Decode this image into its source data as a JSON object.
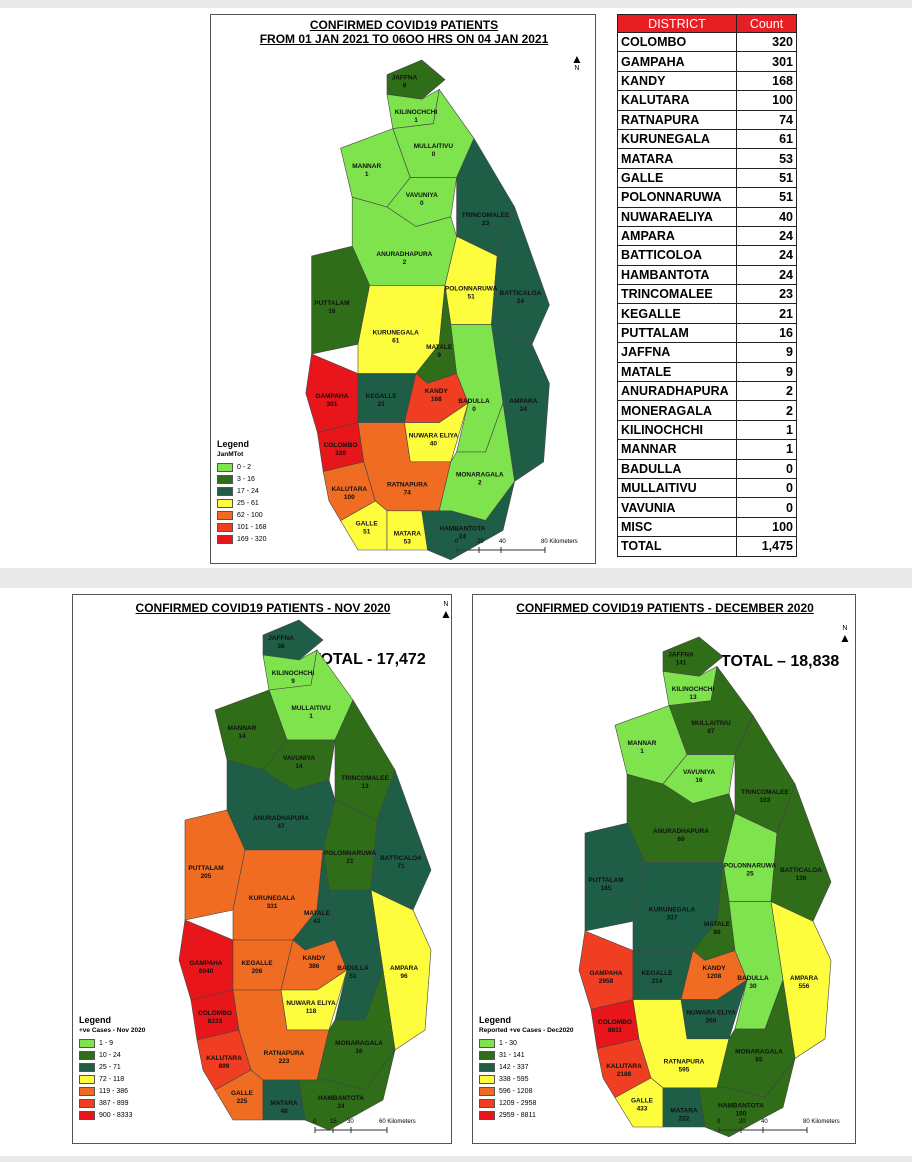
{
  "colors": {
    "light_green": "#7ee34d",
    "dark_green": "#2f6d19",
    "teal": "#1f5e46",
    "yellow": "#fdfd3d",
    "orange": "#f06c23",
    "red_orange": "#ef3e22",
    "red": "#e8161b",
    "table_header": "#e81e25"
  },
  "map1": {
    "title_line1": "CONFIRMED COVID19 PATIENTS",
    "title_line2": "FROM 01 JAN  2021 TO 06OO HRS ON 04 JAN 2021",
    "legend_title": "Legend",
    "legend_field": "JanMTot",
    "legend": [
      {
        "label": "0 - 2",
        "color": "#7ee34d"
      },
      {
        "label": "3 - 16",
        "color": "#2f6d19"
      },
      {
        "label": "17 - 24",
        "color": "#1f5e46"
      },
      {
        "label": "25 - 61",
        "color": "#fdfd3d"
      },
      {
        "label": "62 - 100",
        "color": "#f06c23"
      },
      {
        "label": "101 - 168",
        "color": "#ef3e22"
      },
      {
        "label": "169 - 320",
        "color": "#e8161b"
      }
    ],
    "scale_ticks": [
      "0",
      "20",
      "40",
      "80 Kilometers"
    ],
    "north": "N",
    "districts": [
      {
        "name": "JAFFNA",
        "value": "9",
        "color": "#2f6d19"
      },
      {
        "name": "KILINOCHCHI",
        "value": "1",
        "color": "#7ee34d"
      },
      {
        "name": "MULLAITIVU",
        "value": "0",
        "color": "#7ee34d"
      },
      {
        "name": "MANNAR",
        "value": "1",
        "color": "#7ee34d"
      },
      {
        "name": "VAVUNIYA",
        "value": "0",
        "color": "#7ee34d"
      },
      {
        "name": "TRINCOMALEE",
        "value": "23",
        "color": "#1f5e46"
      },
      {
        "name": "ANURADHAPURA",
        "value": "2",
        "color": "#7ee34d"
      },
      {
        "name": "PUTTALAM",
        "value": "16",
        "color": "#2f6d19"
      },
      {
        "name": "POLONNARUWA",
        "value": "51",
        "color": "#fdfd3d"
      },
      {
        "name": "BATTICALOA",
        "value": "24",
        "color": "#1f5e46"
      },
      {
        "name": "KURUNEGALA",
        "value": "61",
        "color": "#fdfd3d"
      },
      {
        "name": "MATALE",
        "value": "9",
        "color": "#2f6d19"
      },
      {
        "name": "AMPARA",
        "value": "24",
        "color": "#1f5e46"
      },
      {
        "name": "GAMPAHA",
        "value": "301",
        "color": "#e8161b"
      },
      {
        "name": "KEGALLE",
        "value": "21",
        "color": "#1f5e46"
      },
      {
        "name": "KANDY",
        "value": "168",
        "color": "#ef3e22"
      },
      {
        "name": "NUWARA ELIYA",
        "value": "40",
        "color": "#fdfd3d"
      },
      {
        "name": "BADULLA",
        "value": "0",
        "color": "#7ee34d"
      },
      {
        "name": "COLOMBO",
        "value": "320",
        "color": "#e8161b"
      },
      {
        "name": "KALUTARA",
        "value": "100",
        "color": "#f06c23"
      },
      {
        "name": "RATNAPURA",
        "value": "74",
        "color": "#f06c23"
      },
      {
        "name": "MONARAGALA",
        "value": "2",
        "color": "#7ee34d"
      },
      {
        "name": "GALLE",
        "value": "51",
        "color": "#fdfd3d"
      },
      {
        "name": "MATARA",
        "value": "53",
        "color": "#fdfd3d"
      },
      {
        "name": "HAMBANTOTA",
        "value": "24",
        "color": "#1f5e46"
      }
    ]
  },
  "table": {
    "header_district": "DISTRICT",
    "header_count": "Count",
    "rows": [
      [
        "COLOMBO",
        "320"
      ],
      [
        "GAMPAHA",
        "301"
      ],
      [
        "KANDY",
        "168"
      ],
      [
        "KALUTARA",
        "100"
      ],
      [
        "RATNAPURA",
        "74"
      ],
      [
        "KURUNEGALA",
        "61"
      ],
      [
        "MATARA",
        "53"
      ],
      [
        "GALLE",
        "51"
      ],
      [
        "POLONNARUWA",
        "51"
      ],
      [
        "NUWARAELIYA",
        "40"
      ],
      [
        "AMPARA",
        "24"
      ],
      [
        "BATTICOLOA",
        "24"
      ],
      [
        "HAMBANTOTA",
        "24"
      ],
      [
        "TRINCOMALEE",
        "23"
      ],
      [
        "KEGALLE",
        "21"
      ],
      [
        "PUTTALAM",
        "16"
      ],
      [
        "JAFFNA",
        "9"
      ],
      [
        "MATALE",
        "9"
      ],
      [
        "ANURADHAPURA",
        "2"
      ],
      [
        "MONERAGALA",
        "2"
      ],
      [
        "KILINOCHCHI",
        "1"
      ],
      [
        "MANNAR",
        "1"
      ],
      [
        "BADULLA",
        "0"
      ],
      [
        "MULLAITIVU",
        "0"
      ],
      [
        "VAVUNIA",
        "0"
      ],
      [
        "MISC",
        "100"
      ]
    ],
    "total_label": "TOTAL",
    "total_value": "1,475"
  },
  "map2": {
    "title": "CONFIRMED COVID19 PATIENTS - NOV 2020",
    "total": "TOTAL - 17,472",
    "legend_title": "Legend",
    "legend_field": "+ve Cases - Nov 2020",
    "legend": [
      {
        "label": "1 - 9",
        "color": "#7ee34d"
      },
      {
        "label": "10 - 24",
        "color": "#2f6d19"
      },
      {
        "label": "25 - 71",
        "color": "#1f5e46"
      },
      {
        "label": "72 - 118",
        "color": "#fdfd3d"
      },
      {
        "label": "119 - 386",
        "color": "#f06c23"
      },
      {
        "label": "387 - 899",
        "color": "#ef3e22"
      },
      {
        "label": "900 - 8333",
        "color": "#e8161b"
      }
    ],
    "scale_ticks": [
      "0",
      "15",
      "30",
      "60 Kilometers"
    ],
    "north": "N",
    "districts": [
      {
        "name": "JAFFNA",
        "value": "38",
        "color": "#1f5e46"
      },
      {
        "name": "KILINOCHCHI",
        "value": "9",
        "color": "#7ee34d"
      },
      {
        "name": "MULLAITIVU",
        "value": "1",
        "color": "#7ee34d"
      },
      {
        "name": "MANNAR",
        "value": "14",
        "color": "#2f6d19"
      },
      {
        "name": "VAVUNIYA",
        "value": "14",
        "color": "#2f6d19"
      },
      {
        "name": "TRINCOMALEE",
        "value": "13",
        "color": "#2f6d19"
      },
      {
        "name": "ANURADHAPURA",
        "value": "47",
        "color": "#1f5e46"
      },
      {
        "name": "PUTTALAM",
        "value": "205",
        "color": "#f06c23"
      },
      {
        "name": "POLONNARUWA",
        "value": "21",
        "color": "#2f6d19"
      },
      {
        "name": "BATTICALOA",
        "value": "71",
        "color": "#1f5e46"
      },
      {
        "name": "KURUNEGALA",
        "value": "331",
        "color": "#f06c23"
      },
      {
        "name": "MATALE",
        "value": "43",
        "color": "#1f5e46"
      },
      {
        "name": "AMPARA",
        "value": "96",
        "color": "#fdfd3d"
      },
      {
        "name": "GAMPAHA",
        "value": "6040",
        "color": "#e8161b"
      },
      {
        "name": "KEGALLE",
        "value": "206",
        "color": "#f06c23"
      },
      {
        "name": "KANDY",
        "value": "386",
        "color": "#f06c23"
      },
      {
        "name": "NUWARA ELIYA",
        "value": "118",
        "color": "#fdfd3d"
      },
      {
        "name": "BADULLA",
        "value": "51",
        "color": "#1f5e46"
      },
      {
        "name": "COLOMBO",
        "value": "8333",
        "color": "#e8161b"
      },
      {
        "name": "KALUTARA",
        "value": "899",
        "color": "#ef3e22"
      },
      {
        "name": "RATNAPURA",
        "value": "223",
        "color": "#f06c23"
      },
      {
        "name": "MONARAGALA",
        "value": "16",
        "color": "#2f6d19"
      },
      {
        "name": "GALLE",
        "value": "225",
        "color": "#f06c23"
      },
      {
        "name": "MATARA",
        "value": "48",
        "color": "#1f5e46"
      },
      {
        "name": "HAMBANTOTA",
        "value": "24",
        "color": "#2f6d19"
      }
    ]
  },
  "map3": {
    "title": "CONFIRMED COVID19 PATIENTS - DECEMBER 2020",
    "total": "TOTAL – 18,838",
    "legend_title": "Legend",
    "legend_field": "Reported +ve Cases - Dec2020",
    "legend": [
      {
        "label": "1 - 30",
        "color": "#7ee34d"
      },
      {
        "label": "31 - 141",
        "color": "#2f6d19"
      },
      {
        "label": "142 - 337",
        "color": "#1f5e46"
      },
      {
        "label": "338 - 595",
        "color": "#fdfd3d"
      },
      {
        "label": "596 - 1208",
        "color": "#f06c23"
      },
      {
        "label": "1209 - 2958",
        "color": "#ef3e22"
      },
      {
        "label": "2959 - 8811",
        "color": "#e8161b"
      }
    ],
    "scale_ticks": [
      "0",
      "20",
      "40",
      "80 Kilometers"
    ],
    "north": "N",
    "districts": [
      {
        "name": "JAFFNA",
        "value": "141",
        "color": "#2f6d19"
      },
      {
        "name": "KILINOCHCHI",
        "value": "13",
        "color": "#7ee34d"
      },
      {
        "name": "MULLAITIVU",
        "value": "87",
        "color": "#2f6d19"
      },
      {
        "name": "MANNAR",
        "value": "1",
        "color": "#7ee34d"
      },
      {
        "name": "VAVUNIYA",
        "value": "16",
        "color": "#7ee34d"
      },
      {
        "name": "TRINCOMALEE",
        "value": "103",
        "color": "#2f6d19"
      },
      {
        "name": "ANURADHAPURA",
        "value": "69",
        "color": "#2f6d19"
      },
      {
        "name": "PUTTALAM",
        "value": "185",
        "color": "#1f5e46"
      },
      {
        "name": "POLONNARUWA",
        "value": "25",
        "color": "#7ee34d"
      },
      {
        "name": "BATTICALOA",
        "value": "136",
        "color": "#2f6d19"
      },
      {
        "name": "KURUNEGALA",
        "value": "337",
        "color": "#1f5e46"
      },
      {
        "name": "MATALE",
        "value": "86",
        "color": "#2f6d19"
      },
      {
        "name": "AMPARA",
        "value": "556",
        "color": "#fdfd3d"
      },
      {
        "name": "GAMPAHA",
        "value": "2958",
        "color": "#ef3e22"
      },
      {
        "name": "KEGALLE",
        "value": "214",
        "color": "#1f5e46"
      },
      {
        "name": "KANDY",
        "value": "1208",
        "color": "#f06c23"
      },
      {
        "name": "NUWARA ELIYA",
        "value": "260",
        "color": "#1f5e46"
      },
      {
        "name": "BADULLA",
        "value": "30",
        "color": "#7ee34d"
      },
      {
        "name": "COLOMBO",
        "value": "8811",
        "color": "#e8161b"
      },
      {
        "name": "KALUTARA",
        "value": "2188",
        "color": "#ef3e22"
      },
      {
        "name": "RATNAPURA",
        "value": "595",
        "color": "#fdfd3d"
      },
      {
        "name": "MONARAGALA",
        "value": "65",
        "color": "#2f6d19"
      },
      {
        "name": "GALLE",
        "value": "433",
        "color": "#fdfd3d"
      },
      {
        "name": "MATARA",
        "value": "222",
        "color": "#1f5e46"
      },
      {
        "name": "HAMBANTOTA",
        "value": "100",
        "color": "#2f6d19"
      }
    ]
  }
}
